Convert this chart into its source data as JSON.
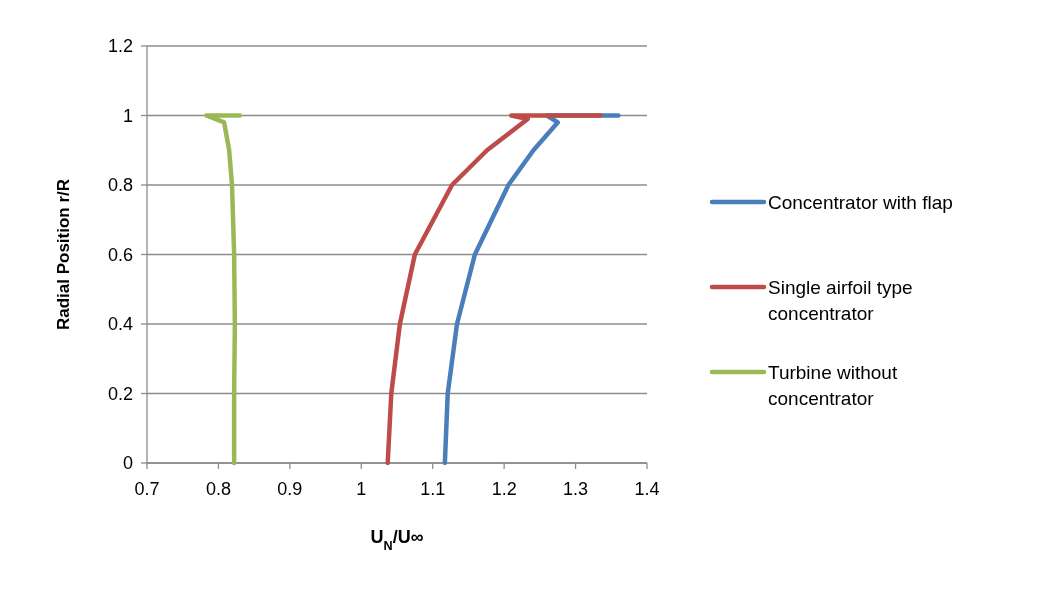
{
  "chart_data": {
    "type": "line",
    "xlabel": "U$_{N}$/U∞",
    "ylabel": "Radial Position r/R",
    "xlim": [
      0.7,
      1.4
    ],
    "xticks": [
      0.7,
      0.8,
      0.9,
      1,
      1.1,
      1.2,
      1.3,
      1.4
    ],
    "ylim": [
      0,
      1.2
    ],
    "yticks": [
      0,
      0.2,
      0.4,
      0.6,
      0.8,
      1,
      1.2
    ],
    "grid": "y",
    "legend": "right",
    "marker": "none",
    "line_style": "solid",
    "series": [
      {
        "name": "Concentrator with flap",
        "color": "#4a7ebb",
        "x": [
          1.117,
          1.121,
          1.134,
          1.159,
          1.206,
          1.241,
          1.275,
          1.26,
          1.36
        ],
        "values": [
          0,
          0.2,
          0.4,
          0.6,
          0.8,
          0.9,
          0.98,
          1,
          1
        ]
      },
      {
        "name": "Single airfoil type concentrator",
        "color": "#be4b48",
        "x": [
          1.037,
          1.042,
          1.054,
          1.075,
          1.127,
          1.176,
          1.233,
          1.21,
          1.335
        ],
        "values": [
          0,
          0.2,
          0.4,
          0.6,
          0.8,
          0.9,
          0.99,
          1,
          1
        ]
      },
      {
        "name": "Turbine without concentrator",
        "color": "#98b954",
        "x": [
          0.822,
          0.822,
          0.823,
          0.822,
          0.819,
          0.815,
          0.808,
          0.783,
          0.83
        ],
        "values": [
          0,
          0.2,
          0.4,
          0.6,
          0.8,
          0.9,
          0.98,
          1,
          1
        ]
      }
    ]
  }
}
